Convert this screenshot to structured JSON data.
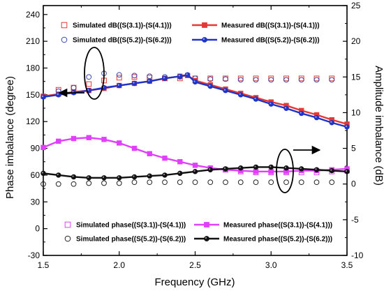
{
  "chart_data": {
    "type": "line",
    "xlabel": "Frequency (GHz)",
    "ylabel_left": "Phase imbalance (degree)",
    "ylabel_right": "Amplitude imbalance (dB)",
    "xlim": [
      1.5,
      3.5
    ],
    "ylim_left": [
      -30,
      250
    ],
    "ylim_right": [
      -10,
      25
    ],
    "x_ticks": [
      "1.5",
      "2.0",
      "2.5",
      "3.0",
      "3.5"
    ],
    "y_left_ticks": [
      "-30",
      "0",
      "30",
      "60",
      "90",
      "120",
      "150",
      "180",
      "210",
      "240"
    ],
    "y_right_ticks": [
      "-10",
      "-5",
      "0",
      "5",
      "10",
      "15",
      "20",
      "25"
    ],
    "legend_location": "top and bottom, inside axes",
    "series": [
      {
        "name": "Simulated dB((S(3.1))-(S(4.1)))",
        "axis": "right",
        "style": "open-square",
        "color": "#e53935",
        "x": [
          1.6,
          1.7,
          1.8,
          1.9,
          2.0,
          2.1,
          2.2,
          2.3,
          2.4,
          2.5,
          2.6,
          2.7,
          2.8,
          2.9,
          3.0,
          3.1,
          3.2,
          3.3,
          3.4
        ],
        "values": [
          13.2,
          13.5,
          14.0,
          14.5,
          14.9,
          15.0,
          14.9,
          14.8,
          14.8,
          14.8,
          14.8,
          14.8,
          14.8,
          14.8,
          14.8,
          14.8,
          14.8,
          14.8,
          14.8
        ]
      },
      {
        "name": "Measured dB((S(3.1))-(S(4.1)))",
        "axis": "right",
        "style": "line-filled-square",
        "color": "#e53935",
        "x": [
          1.5,
          1.6,
          1.7,
          1.8,
          1.9,
          2.0,
          2.1,
          2.2,
          2.3,
          2.4,
          2.45,
          2.5,
          2.6,
          2.7,
          2.8,
          2.9,
          3.0,
          3.1,
          3.2,
          3.3,
          3.4,
          3.5
        ],
        "values": [
          12.3,
          12.6,
          12.9,
          13.1,
          13.4,
          13.8,
          14.1,
          14.4,
          14.8,
          15.1,
          15.2,
          14.5,
          13.9,
          13.3,
          12.7,
          12.1,
          11.5,
          11.0,
          10.3,
          9.7,
          9.0,
          8.4
        ]
      },
      {
        "name": "Simulated dB((S(5.2))-(S(6.2)))",
        "axis": "right",
        "style": "open-circle",
        "color": "#3949ab",
        "x": [
          1.6,
          1.7,
          1.8,
          1.9,
          2.0,
          2.1,
          2.2,
          2.3,
          2.4,
          2.5,
          2.6,
          2.7,
          2.8,
          2.9,
          3.0,
          3.1,
          3.2,
          3.3,
          3.4
        ],
        "values": [
          13.0,
          13.5,
          15.0,
          15.5,
          15.3,
          15.2,
          15.1,
          15.0,
          15.0,
          14.8,
          14.7,
          14.7,
          14.6,
          14.6,
          14.6,
          14.6,
          14.6,
          14.6,
          14.6
        ]
      },
      {
        "name": "Measured dB((S(5.2))-(S(6.2)))",
        "axis": "right",
        "style": "line-filled-circle",
        "color": "#1e35c8",
        "x": [
          1.5,
          1.6,
          1.7,
          1.8,
          1.9,
          2.0,
          2.1,
          2.2,
          2.3,
          2.4,
          2.45,
          2.5,
          2.6,
          2.7,
          2.8,
          2.9,
          3.0,
          3.1,
          3.2,
          3.3,
          3.4,
          3.5
        ],
        "values": [
          12.2,
          12.5,
          12.8,
          13.1,
          13.5,
          13.8,
          14.1,
          14.4,
          14.8,
          15.1,
          15.3,
          14.3,
          13.7,
          13.1,
          12.5,
          11.9,
          11.2,
          10.6,
          9.9,
          9.3,
          8.6,
          8.0
        ]
      },
      {
        "name": "Simulated phase((S(3.1))-(S(4.1)))",
        "axis": "left",
        "style": "open-square",
        "color": "#d946ef",
        "x": [
          2.7,
          2.8,
          2.9,
          3.0,
          3.1,
          3.2,
          3.3,
          3.4,
          3.5
        ],
        "values": [
          66,
          64,
          63,
          63,
          63,
          63,
          63,
          64,
          65
        ]
      },
      {
        "name": "Measured phase((S(3.1))-(S(4.1)))",
        "axis": "left",
        "style": "line-filled-square",
        "color": "#e040fb",
        "x": [
          1.5,
          1.6,
          1.7,
          1.8,
          1.9,
          2.0,
          2.1,
          2.2,
          2.3,
          2.4,
          2.5,
          2.6,
          2.7,
          2.8,
          2.9,
          3.0,
          3.1,
          3.2,
          3.3,
          3.4,
          3.5
        ],
        "values": [
          91,
          98,
          101,
          102,
          100,
          96,
          90,
          84,
          79,
          75,
          71,
          68,
          66,
          65,
          64,
          64,
          64,
          65,
          65,
          66,
          67
        ]
      },
      {
        "name": "Simulated phase((S(5.2))-(S(6.2)))",
        "axis": "left",
        "style": "open-circle",
        "color": "#222222",
        "x": [
          1.5,
          1.6,
          1.7,
          1.8,
          1.9,
          2.0,
          2.1,
          2.2,
          2.3,
          2.4,
          2.5,
          2.6,
          2.7,
          2.8,
          2.9,
          3.0,
          3.1,
          3.2,
          3.3,
          3.4
        ],
        "values": [
          50,
          50,
          50,
          51,
          51,
          51,
          52,
          52,
          52,
          52,
          52,
          52,
          52,
          52,
          52,
          52,
          52,
          52,
          52,
          52
        ]
      },
      {
        "name": "Measured phase((S(5.2))-(S(6.2)))",
        "axis": "left",
        "style": "line-filled-circle",
        "color": "#111111",
        "x": [
          1.5,
          1.6,
          1.7,
          1.8,
          1.9,
          2.0,
          2.1,
          2.2,
          2.3,
          2.4,
          2.5,
          2.6,
          2.7,
          2.8,
          2.9,
          3.0,
          3.1,
          3.2,
          3.3,
          3.4,
          3.5
        ],
        "values": [
          62,
          60,
          58,
          57,
          57,
          57,
          58,
          59,
          60,
          62,
          64,
          66,
          67,
          68,
          69,
          69,
          68,
          67,
          66,
          65,
          64
        ]
      }
    ]
  }
}
